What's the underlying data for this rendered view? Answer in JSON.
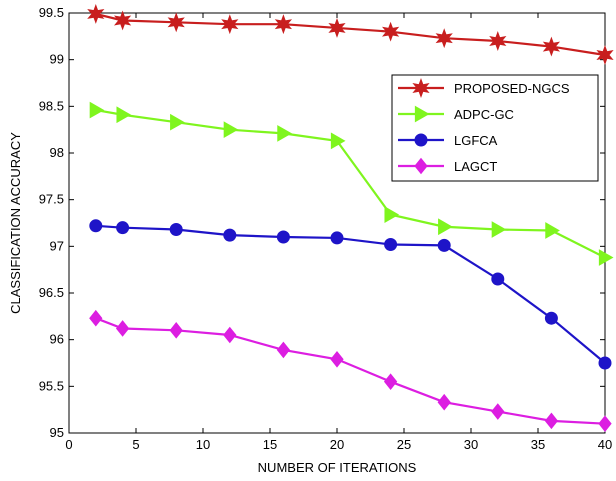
{
  "chart_data": {
    "type": "line",
    "xlabel": "NUMBER OF ITERATIONS",
    "ylabel": "CLASSIFICATION ACCURACY",
    "xlim": [
      0,
      40
    ],
    "ylim": [
      95,
      99.5
    ],
    "xticks": [
      0,
      5,
      10,
      15,
      20,
      25,
      30,
      35,
      40
    ],
    "yticks": [
      95,
      95.5,
      96,
      96.5,
      97,
      97.5,
      98,
      98.5,
      99,
      99.5
    ],
    "grid": false,
    "legend_position": "top-right",
    "series": [
      {
        "name": "PROPOSED-NGCS",
        "color": "#c81e1e",
        "marker": "star",
        "x": [
          2,
          4,
          8,
          12,
          16,
          20,
          24,
          28,
          32,
          36,
          40
        ],
        "y": [
          99.49,
          99.42,
          99.4,
          99.38,
          99.38,
          99.34,
          99.3,
          99.23,
          99.2,
          99.14,
          99.05
        ]
      },
      {
        "name": "ADPC-GC",
        "color": "#7ff51e",
        "marker": "triangle-right",
        "x": [
          2,
          4,
          8,
          12,
          16,
          20,
          24,
          28,
          32,
          36,
          40
        ],
        "y": [
          98.46,
          98.41,
          98.33,
          98.25,
          98.21,
          98.13,
          97.34,
          97.21,
          97.18,
          97.17,
          96.88
        ]
      },
      {
        "name": "LGFCA",
        "color": "#1e14c8",
        "marker": "circle",
        "x": [
          2,
          4,
          8,
          12,
          16,
          20,
          24,
          28,
          32,
          36,
          40
        ],
        "y": [
          97.22,
          97.2,
          97.18,
          97.12,
          97.1,
          97.09,
          97.02,
          97.01,
          96.65,
          96.23,
          95.75
        ]
      },
      {
        "name": "LAGCT",
        "color": "#dc1ee1",
        "marker": "diamond",
        "x": [
          2,
          4,
          8,
          12,
          16,
          20,
          24,
          28,
          32,
          36,
          40
        ],
        "y": [
          96.23,
          96.12,
          96.1,
          96.05,
          95.89,
          95.79,
          95.55,
          95.33,
          95.23,
          95.13,
          95.1
        ]
      }
    ]
  }
}
